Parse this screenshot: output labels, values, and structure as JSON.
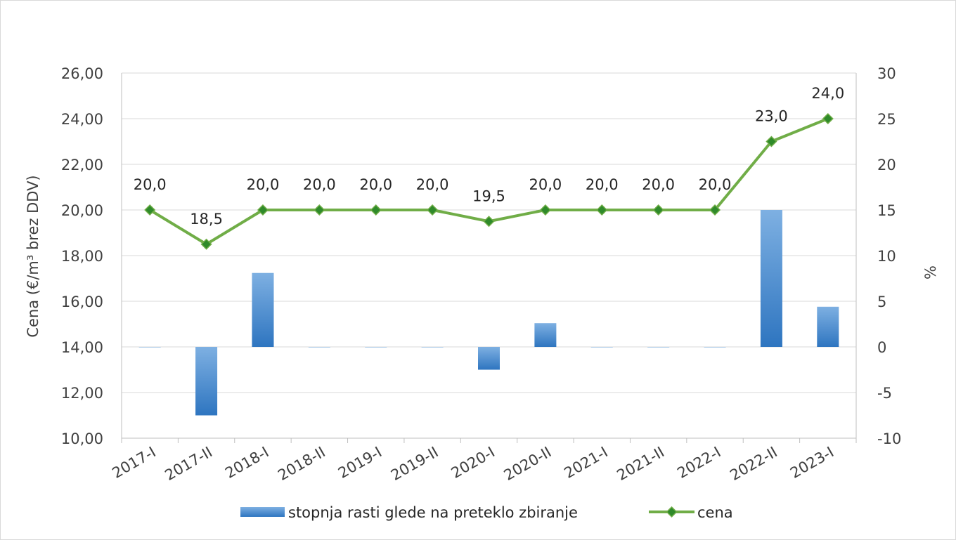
{
  "chart_data": {
    "type": "bar+line",
    "title": "",
    "categories": [
      "2017-I",
      "2017-II",
      "2018-I",
      "2018-II",
      "2019-I",
      "2019-II",
      "2020-I",
      "2020-II",
      "2021-I",
      "2021-II",
      "2022-I",
      "2022-II",
      "2023-I"
    ],
    "series": [
      {
        "name": "stopnja rasti glede na preteklo zbiranje",
        "type": "bar",
        "axis": "right",
        "color": "#5b9bd5",
        "values": [
          0,
          -7.5,
          8.1,
          0,
          0,
          0,
          -2.5,
          2.6,
          0,
          0,
          0,
          15.0,
          4.4
        ]
      },
      {
        "name": "cena",
        "type": "line",
        "axis": "left",
        "color": "#70ad47",
        "marker": "diamond",
        "values": [
          20.0,
          18.5,
          20.0,
          20.0,
          20.0,
          20.0,
          19.5,
          20.0,
          20.0,
          20.0,
          20.0,
          23.0,
          24.0
        ],
        "data_labels": [
          "20,0",
          "18,5",
          "20,0",
          "20,0",
          "20,0",
          "20,0",
          "19,5",
          "20,0",
          "20,0",
          "20,0",
          "20,0",
          "23,0",
          "24,0"
        ]
      }
    ],
    "y_left": {
      "label": "Cena (€/m³ brez DDV)",
      "min": 10,
      "max": 26,
      "step": 2,
      "tick_labels": [
        "10,00",
        "12,00",
        "14,00",
        "16,00",
        "18,00",
        "20,00",
        "22,00",
        "24,00",
        "26,00"
      ]
    },
    "y_right": {
      "label": "%",
      "min": -10,
      "max": 30,
      "step": 5,
      "tick_labels": [
        "-10",
        "-5",
        "0",
        "5",
        "10",
        "15",
        "20",
        "25",
        "30"
      ]
    },
    "grid": true,
    "legend": "bottom"
  }
}
